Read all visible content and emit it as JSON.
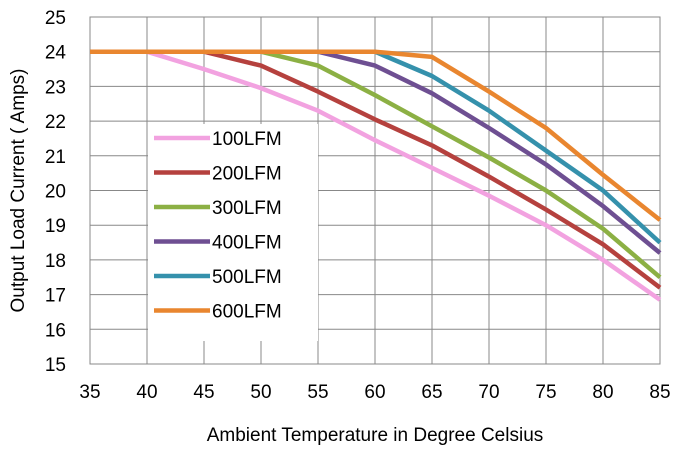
{
  "chart_data": {
    "type": "line",
    "title": "",
    "xlabel": "Ambient Temperature in Degree Celsius",
    "ylabel": "Output Load Current ( Amps)",
    "xlim": [
      35,
      85
    ],
    "ylim": [
      15,
      25
    ],
    "x_ticks": [
      35,
      40,
      45,
      50,
      55,
      60,
      65,
      70,
      75,
      80,
      85
    ],
    "y_ticks": [
      15,
      16,
      17,
      18,
      19,
      20,
      21,
      22,
      23,
      24,
      25
    ],
    "grid": true,
    "legend_position": "left-center",
    "x": [
      35,
      40,
      45,
      50,
      55,
      60,
      65,
      70,
      75,
      80,
      85
    ],
    "series": [
      {
        "name": "100LFM",
        "color": "#F2A2E0",
        "values": [
          24,
          24,
          23.5,
          22.95,
          22.3,
          21.45,
          20.65,
          19.85,
          19.0,
          18.0,
          16.85
        ]
      },
      {
        "name": "200LFM",
        "color": "#B5413E",
        "values": [
          24,
          24,
          24,
          23.6,
          22.85,
          22.05,
          21.3,
          20.4,
          19.45,
          18.45,
          17.2
        ]
      },
      {
        "name": "300LFM",
        "color": "#8CB044",
        "values": [
          24,
          24,
          24,
          24,
          23.6,
          22.75,
          21.85,
          20.95,
          20.0,
          18.9,
          17.5
        ]
      },
      {
        "name": "400LFM",
        "color": "#6E4F92",
        "values": [
          24,
          24,
          24,
          24,
          24,
          23.6,
          22.8,
          21.8,
          20.75,
          19.55,
          18.2
        ]
      },
      {
        "name": "500LFM",
        "color": "#3591AC",
        "values": [
          24,
          24,
          24,
          24,
          24,
          24,
          23.3,
          22.3,
          21.15,
          20.0,
          18.5
        ]
      },
      {
        "name": "600LFM",
        "color": "#E9862F",
        "values": [
          24,
          24,
          24,
          24,
          24,
          24,
          23.85,
          22.85,
          21.8,
          20.45,
          19.15
        ]
      }
    ]
  }
}
